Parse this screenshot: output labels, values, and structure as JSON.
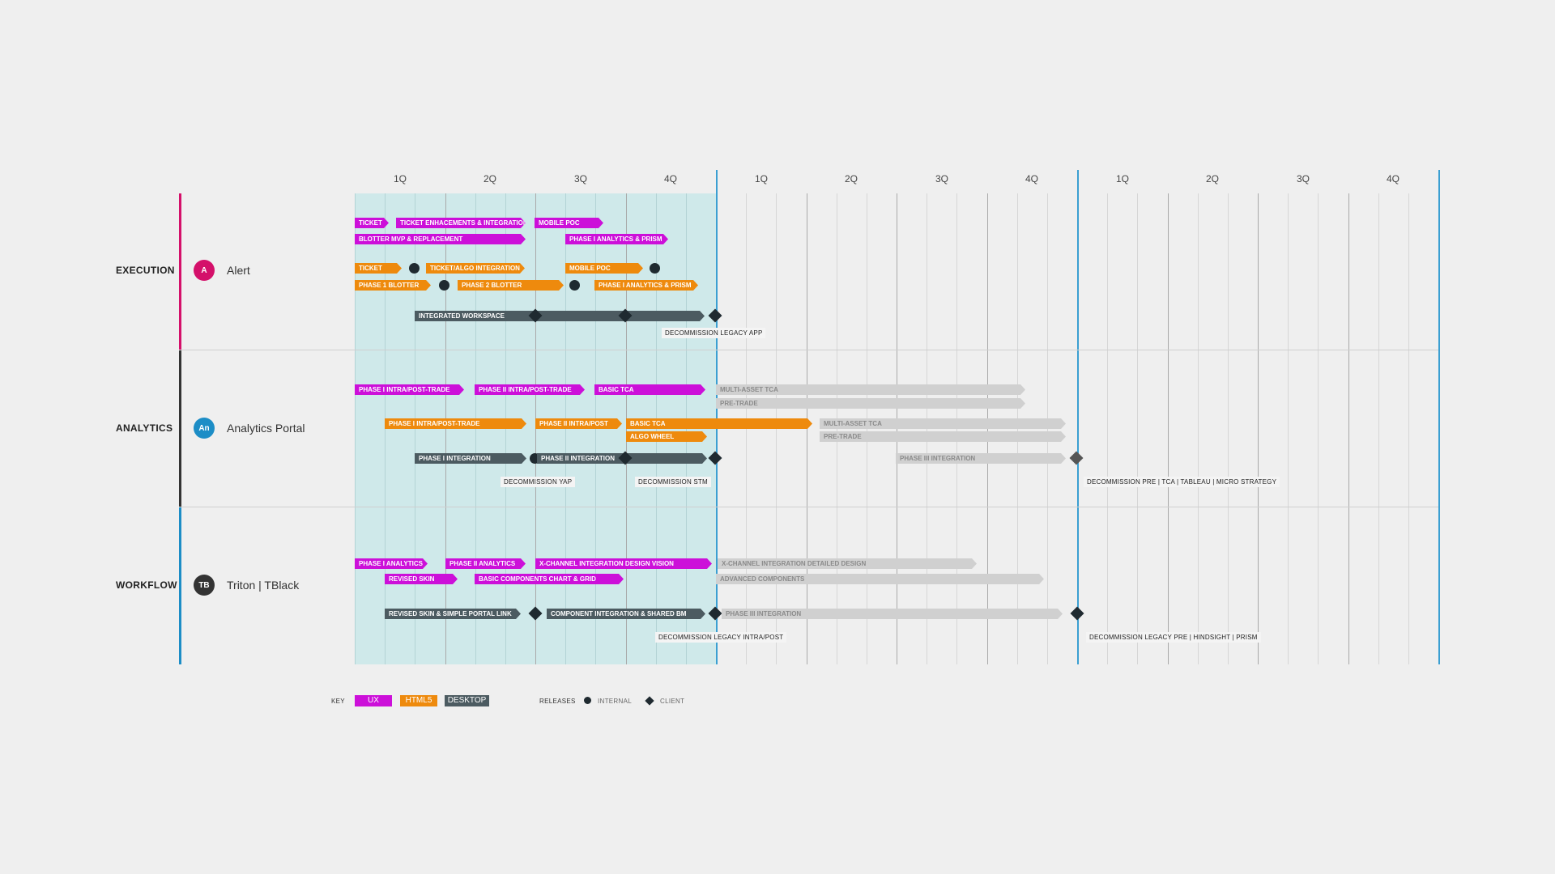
{
  "quarters": [
    "1Q",
    "2Q",
    "3Q",
    "4Q",
    "1Q",
    "2Q",
    "3Q",
    "4Q",
    "1Q",
    "2Q",
    "3Q",
    "4Q"
  ],
  "colors": {
    "ux": "#cc10d9",
    "html5": "#ee8a0d",
    "desktop": "#4c5b61",
    "future": "#d0d0d0",
    "current": "#3b9fd2"
  },
  "sections": [
    {
      "label": "EXECUTION",
      "app": "Alert",
      "avatar": "A",
      "avatar_color": "#d4106a",
      "rule_color": "#d4106a"
    },
    {
      "label": "ANALYTICS",
      "app": "Analytics Portal",
      "avatar": "An",
      "avatar_color": "#1c8dc6",
      "rule_color": "#333333"
    },
    {
      "label": "WORKFLOW",
      "app": "Triton | TBlack",
      "avatar": "TB",
      "avatar_color": "#333333",
      "rule_color": "#1c8dc6"
    }
  ],
  "bars": [
    {
      "label": "TICKET",
      "type": "ux"
    },
    {
      "label": "TICKET ENHACEMENTS & INTEGRATION",
      "type": "ux"
    },
    {
      "label": "MOBILE POC",
      "type": "ux"
    },
    {
      "label": "BLOTTER MVP & REPLACEMENT",
      "type": "ux"
    },
    {
      "label": "PHASE I ANALYTICS & PRISM",
      "type": "ux"
    },
    {
      "label": "TICKET",
      "type": "html5"
    },
    {
      "label": "TICKET/ALGO INTEGRATION",
      "type": "html5"
    },
    {
      "label": "MOBILE POC",
      "type": "html5"
    },
    {
      "label": "PHASE 1 BLOTTER",
      "type": "html5"
    },
    {
      "label": "PHASE 2 BLOTTER",
      "type": "html5"
    },
    {
      "label": "PHASE I ANALYTICS & PRISM",
      "type": "html5"
    },
    {
      "label": "INTEGRATED WORKSPACE",
      "type": "desktop"
    },
    {
      "label": "PHASE I INTRA/POST-TRADE",
      "type": "ux"
    },
    {
      "label": "PHASE II INTRA/POST-TRADE",
      "type": "ux"
    },
    {
      "label": "BASIC TCA",
      "type": "ux"
    },
    {
      "label": "MULTI-ASSET TCA",
      "type": "future"
    },
    {
      "label": "PRE-TRADE",
      "type": "future"
    },
    {
      "label": "PHASE I INTRA/POST-TRADE",
      "type": "html5"
    },
    {
      "label": "PHASE II INTRA/POST",
      "type": "html5"
    },
    {
      "label": "BASIC TCA",
      "type": "html5"
    },
    {
      "label": "ALGO WHEEL",
      "type": "html5"
    },
    {
      "label": "MULTI-ASSET TCA",
      "type": "future"
    },
    {
      "label": "PRE-TRADE",
      "type": "future"
    },
    {
      "label": "PHASE I INTEGRATION",
      "type": "desktop"
    },
    {
      "label": "PHASE II INTEGRATION",
      "type": "desktop"
    },
    {
      "label": "PHASE III INTEGRATION",
      "type": "future"
    },
    {
      "label": "PHASE I ANALYTICS",
      "type": "ux"
    },
    {
      "label": "PHASE II ANALYTICS",
      "type": "ux"
    },
    {
      "label": "X-CHANNEL INTEGRATION DESIGN VISION",
      "type": "ux"
    },
    {
      "label": "X-CHANNEL INTEGRATION DETAILED DESIGN",
      "type": "future"
    },
    {
      "label": "REVISED SKIN",
      "type": "ux"
    },
    {
      "label": "BASIC COMPONENTS CHART & GRID",
      "type": "ux"
    },
    {
      "label": "ADVANCED COMPONENTS",
      "type": "future"
    },
    {
      "label": "REVISED SKIN & SIMPLE PORTAL LINK",
      "type": "desktop"
    },
    {
      "label": "COMPONENT INTEGRATION & SHARED BM",
      "type": "desktop"
    },
    {
      "label": "PHASE III INTEGRATION",
      "type": "future"
    }
  ],
  "notes": [
    "DECOMMISSION LEGACY APP",
    "DECOMMISSION YAP",
    "DECOMMISSION STM",
    "DECOMMISSION PRE | TCA | TABLEAU | MICRO STRATEGY",
    "DECOMMISSION LEGACY INTRA/POST",
    "DECOMMISSION LEGACY PRE | HINDSIGHT | PRISM"
  ],
  "legend": {
    "key_label": "KEY",
    "ux": "UX",
    "html5": "HTML5",
    "desktop": "DESKTOP",
    "releases_label": "RELEASES",
    "internal": "INTERNAL",
    "client": "CLIENT"
  }
}
